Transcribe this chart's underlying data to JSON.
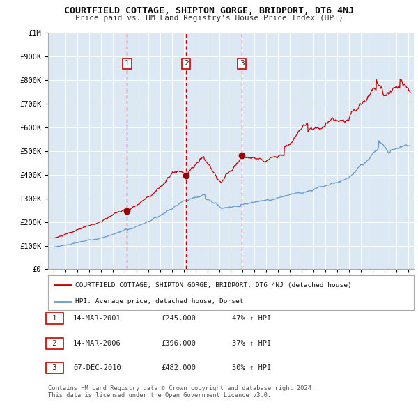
{
  "title": "COURTFIELD COTTAGE, SHIPTON GORGE, BRIDPORT, DT6 4NJ",
  "subtitle": "Price paid vs. HM Land Registry's House Price Index (HPI)",
  "plot_bg_color": "#dce9f5",
  "red_line_color": "#cc0000",
  "blue_line_color": "#6699cc",
  "sale_marker_color": "#990000",
  "dashed_line_color": "#cc0000",
  "ylim": [
    0,
    1000000
  ],
  "yticks": [
    0,
    100000,
    200000,
    300000,
    400000,
    500000,
    600000,
    700000,
    800000,
    900000,
    1000000
  ],
  "ytick_labels": [
    "£0",
    "£100K",
    "£200K",
    "£300K",
    "£400K",
    "£500K",
    "£600K",
    "£700K",
    "£800K",
    "£900K",
    "£1M"
  ],
  "xlim_start": 1994.5,
  "xlim_end": 2025.5,
  "sales": [
    {
      "year": 2001.2,
      "price": 245000,
      "label": "1"
    },
    {
      "year": 2006.2,
      "price": 396000,
      "label": "2"
    },
    {
      "year": 2010.93,
      "price": 482000,
      "label": "3"
    }
  ],
  "sale_dates": [
    "14-MAR-2001",
    "14-MAR-2006",
    "07-DEC-2010"
  ],
  "sale_prices_str": [
    "£245,000",
    "£396,000",
    "£482,000"
  ],
  "sale_hpi_pct": [
    "47% ↑ HPI",
    "37% ↑ HPI",
    "50% ↑ HPI"
  ],
  "legend_label_red": "COURTFIELD COTTAGE, SHIPTON GORGE, BRIDPORT, DT6 4NJ (detached house)",
  "legend_label_blue": "HPI: Average price, detached house, Dorset",
  "footnote1": "Contains HM Land Registry data © Crown copyright and database right 2024.",
  "footnote2": "This data is licensed under the Open Government Licence v3.0."
}
